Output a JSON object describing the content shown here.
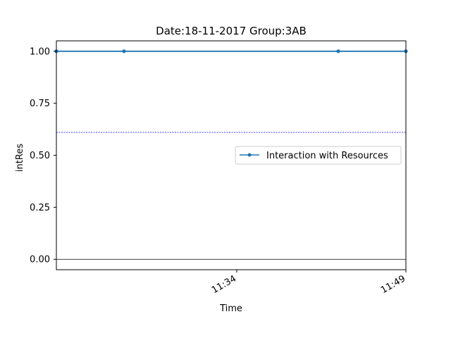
{
  "chart_data": {
    "type": "line",
    "title": "Date:18-11-2017  Group:3AB",
    "xlabel": "Time",
    "ylabel": "intRes",
    "x_ticks": [
      "11:34",
      "11:49"
    ],
    "y_ticks": [
      "0.00",
      "0.25",
      "0.50",
      "0.75",
      "1.00"
    ],
    "xlim": [
      "11:18",
      "11:49"
    ],
    "ylim": [
      -0.05,
      1.05
    ],
    "grid": false,
    "legend_position": "center-right",
    "series": [
      {
        "name": "Interaction with Resources",
        "color": "#1f77b4",
        "x": [
          "11:18",
          "11:24",
          "11:43",
          "11:49"
        ],
        "values": [
          1,
          1,
          1,
          1
        ]
      }
    ],
    "reference_lines": [
      {
        "y": 0.61,
        "color": "#0000ff",
        "style": "dotted"
      },
      {
        "y": 0,
        "color": "#000000",
        "style": "solid"
      }
    ]
  }
}
